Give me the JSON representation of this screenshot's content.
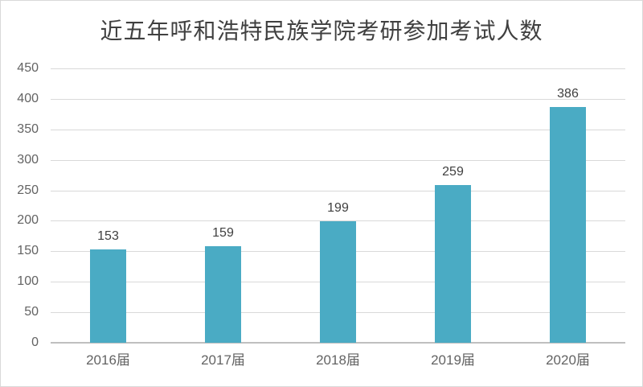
{
  "chart_data": {
    "type": "bar",
    "title": "近五年呼和浩特民族学院考研参加考试人数",
    "categories": [
      "2016届",
      "2017届",
      "2018届",
      "2019届",
      "2020届"
    ],
    "values": [
      153,
      159,
      199,
      259,
      386
    ],
    "xlabel": "",
    "ylabel": "",
    "ylim": [
      0,
      450
    ],
    "ytick_step": 50,
    "grid": true,
    "legend": "none",
    "value_labels_shown": true,
    "colors": {
      "bar": "#4AABC4",
      "gridline": "#D9D9D9",
      "axis_line": "#BFBFBF",
      "title_text": "#404040",
      "value_label_text": "#404040",
      "tick_label_text": "#636363",
      "background": "#FFFFFF",
      "frame_border": "#D9D9D9"
    }
  }
}
